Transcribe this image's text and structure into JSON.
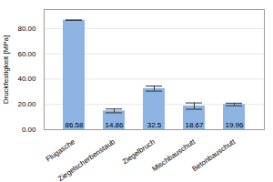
{
  "chart_data": {
    "type": "bar",
    "ylabel": "Druckfestigkeit [MPa]",
    "categories": [
      "Flugasche",
      "Ziegelscherbenstaub",
      "Ziegelbruch",
      "Mischbauschutt",
      "Betonbauschutt"
    ],
    "values": [
      86.58,
      14.86,
      32.5,
      18.67,
      19.96
    ],
    "errors": [
      0.0,
      1.5,
      2.0,
      2.5,
      1.0
    ],
    "color": "#8db4e2",
    "ylim": [
      0,
      95
    ],
    "yticks": [
      {
        "value": 0,
        "label": "0.00"
      },
      {
        "value": 20,
        "label": "20.00"
      },
      {
        "value": 40,
        "label": "40.00"
      },
      {
        "value": 60,
        "label": "60.00"
      },
      {
        "value": 80,
        "label": "80.00"
      }
    ],
    "grid": true,
    "data_labels": true
  }
}
